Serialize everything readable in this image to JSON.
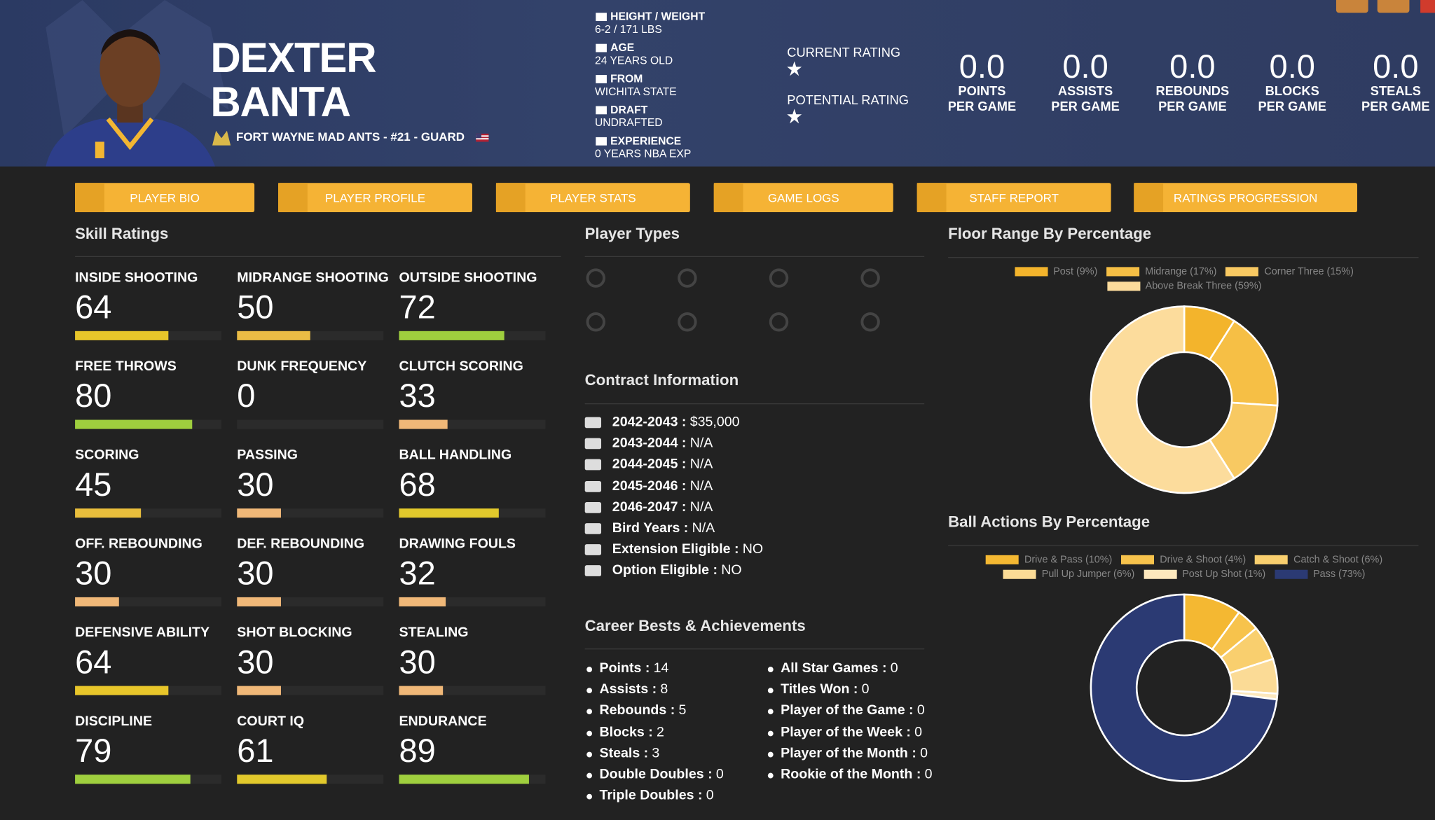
{
  "header": {
    "first_name": "DEXTER",
    "last_name": "BANTA",
    "team_line": "FORT WAYNE MAD ANTS - #21 - GUARD"
  },
  "bio": [
    {
      "label": "HEIGHT / WEIGHT",
      "value": "6-2 / 171 LBS"
    },
    {
      "label": "AGE",
      "value": "24 YEARS OLD"
    },
    {
      "label": "FROM",
      "value": "WICHITA STATE"
    },
    {
      "label": "DRAFT",
      "value": "UNDRAFTED"
    },
    {
      "label": "EXPERIENCE",
      "value": "0 YEARS NBA EXP"
    }
  ],
  "ratings": [
    {
      "label": "CURRENT RATING",
      "stars": 1
    },
    {
      "label": "POTENTIAL RATING",
      "stars": 1
    }
  ],
  "stats": [
    {
      "value": "0.0",
      "label": [
        "POINTS",
        "PER GAME"
      ]
    },
    {
      "value": "0.0",
      "label": [
        "ASSISTS",
        "PER GAME"
      ]
    },
    {
      "value": "0.0",
      "label": [
        "REBOUNDS",
        "PER GAME"
      ]
    },
    {
      "value": "0.0",
      "label": [
        "BLOCKS",
        "PER GAME"
      ]
    },
    {
      "value": "0.0",
      "label": [
        "STEALS",
        "PER GAME"
      ]
    }
  ],
  "nav": [
    "PLAYER BIO",
    "PLAYER PROFILE",
    "PLAYER STATS",
    "GAME LOGS",
    "STAFF REPORT",
    "RATINGS PROGRESSION"
  ],
  "skills": {
    "title": "Skill Ratings",
    "xlim": [
      0,
      100
    ],
    "items": [
      {
        "name": "INSIDE SHOOTING",
        "value": 64,
        "color": "#e8c62a"
      },
      {
        "name": "MIDRANGE SHOOTING",
        "value": 50,
        "color": "#ebbc45"
      },
      {
        "name": "OUTSIDE SHOOTING",
        "value": 72,
        "color": "#9fcf3e"
      },
      {
        "name": "FREE THROWS",
        "value": 80,
        "color": "#9fcf3e"
      },
      {
        "name": "DUNK FREQUENCY",
        "value": 0,
        "color": "#f0b878"
      },
      {
        "name": "CLUTCH SCORING",
        "value": 33,
        "color": "#f0b878"
      },
      {
        "name": "SCORING",
        "value": 45,
        "color": "#e9be3c"
      },
      {
        "name": "PASSING",
        "value": 30,
        "color": "#f0b878"
      },
      {
        "name": "BALL HANDLING",
        "value": 68,
        "color": "#e2c92c"
      },
      {
        "name": "OFF. REBOUNDING",
        "value": 30,
        "color": "#f0b878"
      },
      {
        "name": "DEF. REBOUNDING",
        "value": 30,
        "color": "#f0b878"
      },
      {
        "name": "DRAWING FOULS",
        "value": 32,
        "color": "#f0b878"
      },
      {
        "name": "DEFENSIVE ABILITY",
        "value": 64,
        "color": "#e8c62a"
      },
      {
        "name": "SHOT BLOCKING",
        "value": 30,
        "color": "#f0b878"
      },
      {
        "name": "STEALING",
        "value": 30,
        "color": "#f0b878"
      },
      {
        "name": "DISCIPLINE",
        "value": 79,
        "color": "#9fcf3e"
      },
      {
        "name": "COURT IQ",
        "value": 61,
        "color": "#e2c92c"
      },
      {
        "name": "ENDURANCE",
        "value": 89,
        "color": "#9fcf3e"
      }
    ]
  },
  "player_types": {
    "title": "Player Types"
  },
  "contract": {
    "title": "Contract Information",
    "rows": [
      {
        "label": "2042-2043 :",
        "value": "$35,000"
      },
      {
        "label": "2043-2044 :",
        "value": "N/A"
      },
      {
        "label": "2044-2045 :",
        "value": "N/A"
      },
      {
        "label": "2045-2046 :",
        "value": "N/A"
      },
      {
        "label": "2046-2047 :",
        "value": "N/A"
      },
      {
        "label": "Bird Years :",
        "value": "N/A"
      },
      {
        "label": "Extension Eligible :",
        "value": "NO"
      },
      {
        "label": "Option Eligible :",
        "value": "NO"
      }
    ]
  },
  "career": {
    "title": "Career Bests & Achievements",
    "columns": [
      [
        {
          "label": "Points :",
          "value": 14
        },
        {
          "label": "Assists :",
          "value": 8
        },
        {
          "label": "Rebounds :",
          "value": 5
        },
        {
          "label": "Blocks :",
          "value": 2
        },
        {
          "label": "Steals :",
          "value": 3
        },
        {
          "label": "Double Doubles :",
          "value": 0
        },
        {
          "label": "Triple Doubles :",
          "value": 0
        }
      ],
      [
        {
          "label": "All Star Games :",
          "value": 0
        },
        {
          "label": "Titles Won :",
          "value": 0
        },
        {
          "label": "Player of the Game :",
          "value": 0
        },
        {
          "label": "Player of the Week :",
          "value": 0
        },
        {
          "label": "Player of the Month :",
          "value": 0
        },
        {
          "label": "Rookie of the Month :",
          "value": 0
        }
      ]
    ]
  },
  "floor_range": {
    "type": "pie",
    "title": "Floor Range By Percentage",
    "labels": [
      "Post (9%)",
      "Midrange (17%)",
      "Corner Three (15%)",
      "Above Break Three (59%)"
    ],
    "values": [
      9,
      17,
      15,
      59
    ],
    "colors": [
      "#f3b42c",
      "#f6bf45",
      "#f8c962",
      "#fcdc9c"
    ]
  },
  "ball_actions": {
    "type": "pie",
    "title": "Ball Actions By Percentage",
    "labels": [
      "Drive & Pass (10%)",
      "Drive & Shoot (4%)",
      "Catch & Shoot (6%)",
      "Pull Up Jumper (6%)",
      "Post Up Shot (1%)",
      "Pass (73%)"
    ],
    "values": [
      10,
      4,
      6,
      6,
      1,
      73
    ],
    "colors": [
      "#f4b832",
      "#f7c34c",
      "#f9cf6e",
      "#fbdb96",
      "#fde8bd",
      "#2b3a73"
    ]
  }
}
